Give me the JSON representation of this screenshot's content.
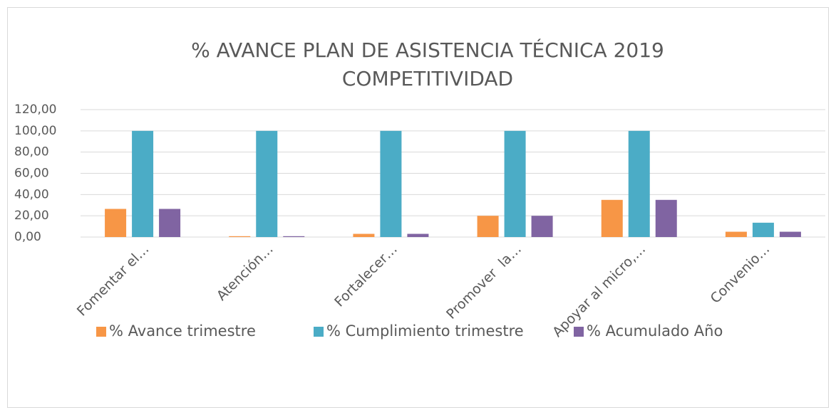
{
  "chart_data": {
    "type": "bar",
    "title": [
      "% AVANCE PLAN DE ASISTENCIA TÉCNICA 2019",
      "COMPETITIVIDAD"
    ],
    "categories": [
      "Fomentar el…",
      "Atención…",
      "Fortalecer…",
      "Promover  la…",
      "Apoyar al micro,…",
      "Convenio…"
    ],
    "series": [
      {
        "name": "% Avance trimestre",
        "color": "#f79646",
        "values": [
          26.5,
          0.8,
          3,
          20,
          35,
          5
        ]
      },
      {
        "name": "% Cumplimiento trimestre",
        "color": "#4bacc6",
        "values": [
          100,
          100,
          100,
          100,
          100,
          13.5
        ]
      },
      {
        "name": "% Acumulado Año",
        "color": "#8064a2",
        "values": [
          26.5,
          0.8,
          3,
          20,
          35,
          5
        ]
      }
    ],
    "ylim": [
      0,
      120
    ],
    "yticks": [
      {
        "value": 0,
        "label": "0,00"
      },
      {
        "value": 20,
        "label": "20,00"
      },
      {
        "value": 40,
        "label": "40,00"
      },
      {
        "value": 60,
        "label": "60,00"
      },
      {
        "value": 80,
        "label": "80,00"
      },
      {
        "value": 100,
        "label": "100,00"
      },
      {
        "value": 120,
        "label": "120,00"
      }
    ],
    "grid": true,
    "legend": "bottom"
  }
}
